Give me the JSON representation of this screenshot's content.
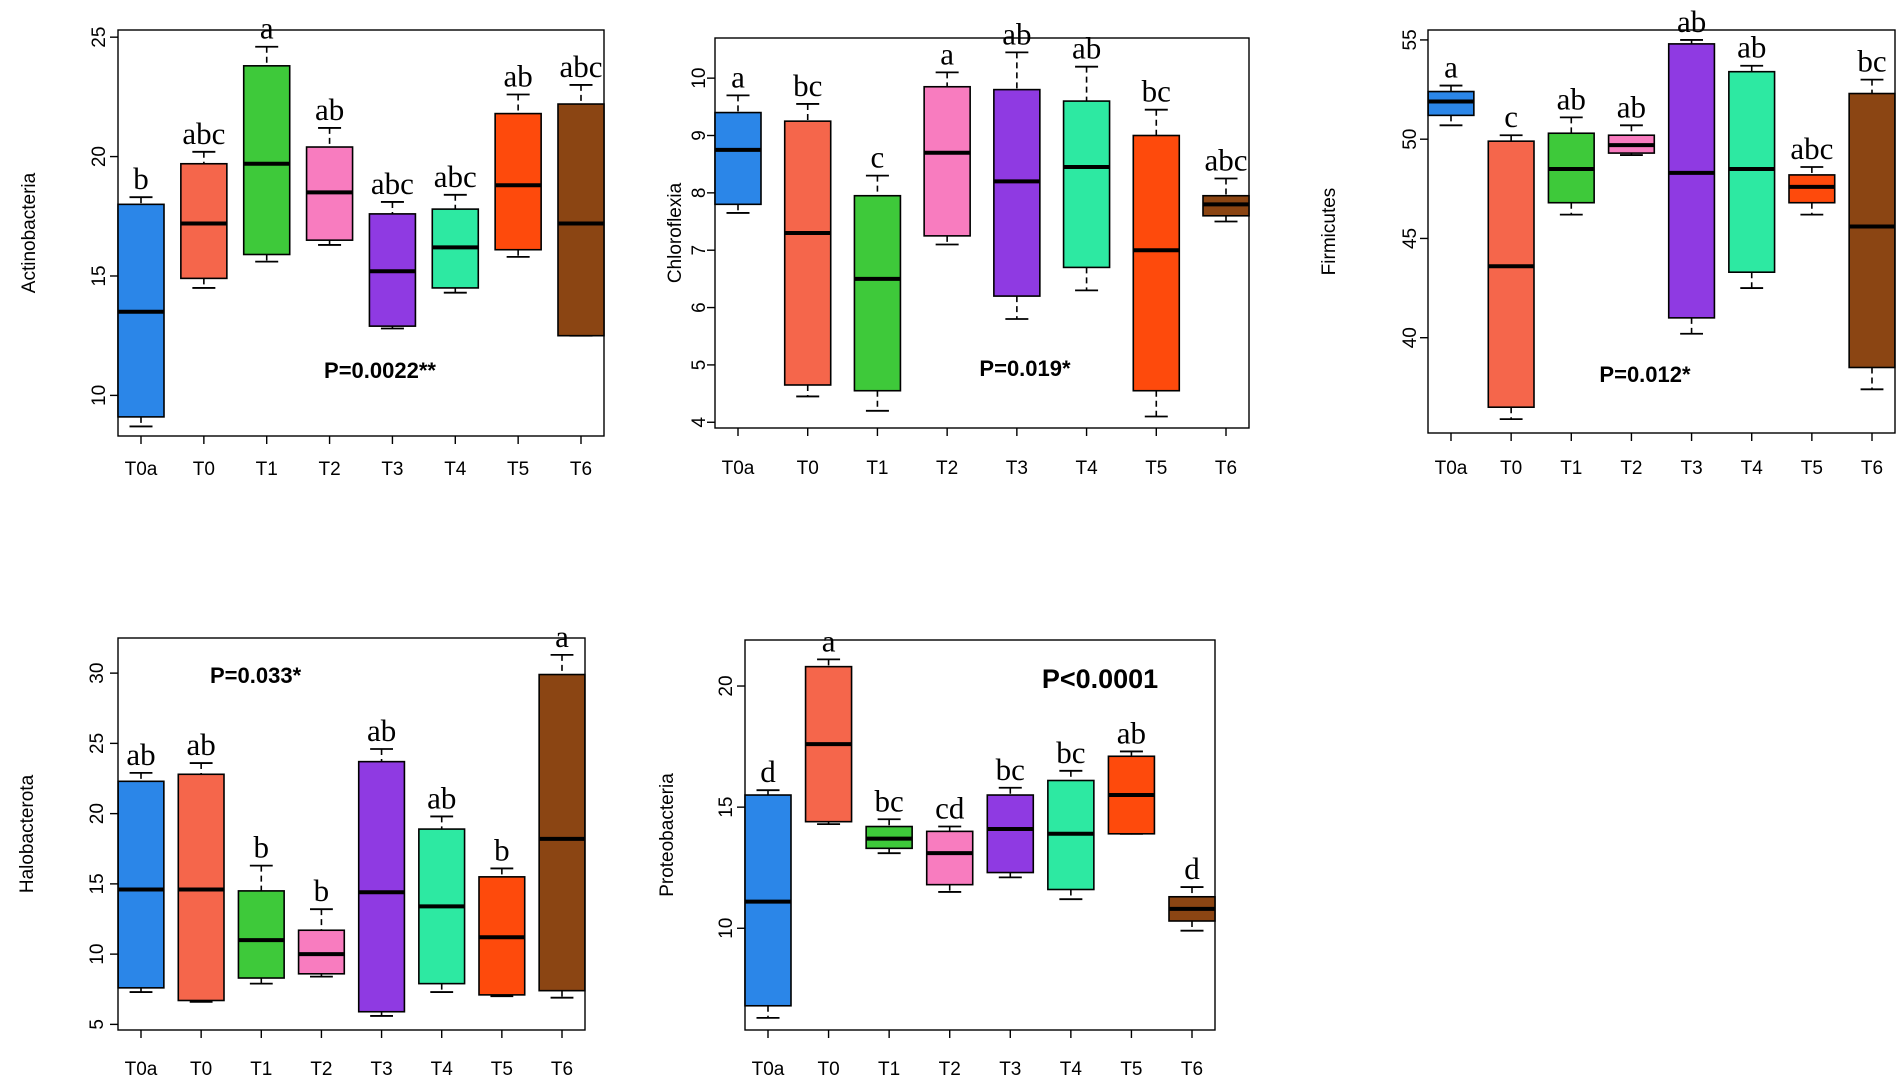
{
  "groups": [
    "T0a",
    "T0",
    "T1",
    "T2",
    "T3",
    "T4",
    "T5",
    "T6"
  ],
  "colors": [
    "#2b86e8",
    "#f5664b",
    "#3ec93a",
    "#f87cbf",
    "#8f3ae2",
    "#2de9a2",
    "#fe4a0c",
    "#8b4513"
  ],
  "chart_data": [
    {
      "type": "box",
      "ylabel": "Actinobacteria",
      "ylim": [
        8.3,
        25.3
      ],
      "yticks": [
        10,
        15,
        20,
        25
      ],
      "p_value": "P=0.0022**",
      "p_position": "bottom-center",
      "boxes": [
        {
          "group": "T0a",
          "min": 8.7,
          "q1": 9.1,
          "median": 13.5,
          "q3": 18.0,
          "max": 18.3,
          "letter": "b"
        },
        {
          "group": "T0",
          "min": 14.5,
          "q1": 14.9,
          "median": 17.2,
          "q3": 19.7,
          "max": 20.2,
          "letter": "abc"
        },
        {
          "group": "T1",
          "min": 15.6,
          "q1": 15.9,
          "median": 19.7,
          "q3": 23.8,
          "max": 24.6,
          "letter": "a"
        },
        {
          "group": "T2",
          "min": 16.3,
          "q1": 16.5,
          "median": 18.5,
          "q3": 20.4,
          "max": 21.2,
          "letter": "ab"
        },
        {
          "group": "T3",
          "min": 12.8,
          "q1": 12.9,
          "median": 15.2,
          "q3": 17.6,
          "max": 18.1,
          "letter": "abc"
        },
        {
          "group": "T4",
          "min": 14.3,
          "q1": 14.5,
          "median": 16.2,
          "q3": 17.8,
          "max": 18.4,
          "letter": "abc"
        },
        {
          "group": "T5",
          "min": 15.8,
          "q1": 16.1,
          "median": 18.8,
          "q3": 21.8,
          "max": 22.6,
          "letter": "ab"
        },
        {
          "group": "T6",
          "min": 12.5,
          "q1": 12.5,
          "median": 17.2,
          "q3": 22.2,
          "max": 23.0,
          "letter": "abc"
        }
      ]
    },
    {
      "type": "box",
      "ylabel": "Chloroflexia",
      "ylim": [
        3.9,
        10.7
      ],
      "yticks": [
        4,
        5,
        6,
        7,
        8,
        9,
        10
      ],
      "p_value": "P=0.019*",
      "p_position": "bottom-center",
      "boxes": [
        {
          "group": "T0a",
          "min": 7.65,
          "q1": 7.8,
          "median": 8.75,
          "q3": 9.4,
          "max": 9.7,
          "letter": "a"
        },
        {
          "group": "T0",
          "min": 4.45,
          "q1": 4.65,
          "median": 7.3,
          "q3": 9.25,
          "max": 9.55,
          "letter": "bc"
        },
        {
          "group": "T1",
          "min": 4.2,
          "q1": 4.55,
          "median": 6.5,
          "q3": 7.95,
          "max": 8.3,
          "letter": "c"
        },
        {
          "group": "T2",
          "min": 7.1,
          "q1": 7.25,
          "median": 8.7,
          "q3": 9.85,
          "max": 10.1,
          "letter": "a"
        },
        {
          "group": "T3",
          "min": 5.8,
          "q1": 6.2,
          "median": 8.2,
          "q3": 9.8,
          "max": 10.45,
          "letter": "ab"
        },
        {
          "group": "T4",
          "min": 6.3,
          "q1": 6.7,
          "median": 8.45,
          "q3": 9.6,
          "max": 10.2,
          "letter": "ab"
        },
        {
          "group": "T5",
          "min": 4.1,
          "q1": 4.55,
          "median": 7.0,
          "q3": 9.0,
          "max": 9.45,
          "letter": "bc"
        },
        {
          "group": "T6",
          "min": 7.5,
          "q1": 7.6,
          "median": 7.8,
          "q3": 7.95,
          "max": 8.25,
          "letter": "abc"
        }
      ]
    },
    {
      "type": "box",
      "ylabel": "Firmicutes",
      "ylim": [
        35.2,
        55.5
      ],
      "yticks": [
        40,
        45,
        50,
        55
      ],
      "p_value": "P=0.012*",
      "p_position": "bottom-center",
      "boxes": [
        {
          "group": "T0a",
          "min": 50.7,
          "q1": 51.2,
          "median": 51.9,
          "q3": 52.4,
          "max": 52.7,
          "letter": "a"
        },
        {
          "group": "T0",
          "min": 35.9,
          "q1": 36.5,
          "median": 43.6,
          "q3": 49.9,
          "max": 50.2,
          "letter": "c"
        },
        {
          "group": "T1",
          "min": 46.2,
          "q1": 46.8,
          "median": 48.5,
          "q3": 50.3,
          "max": 51.1,
          "letter": "ab"
        },
        {
          "group": "T2",
          "min": 49.2,
          "q1": 49.3,
          "median": 49.7,
          "q3": 50.2,
          "max": 50.7,
          "letter": "ab"
        },
        {
          "group": "T3",
          "min": 40.2,
          "q1": 41.0,
          "median": 48.3,
          "q3": 54.8,
          "max": 55.0,
          "letter": "ab"
        },
        {
          "group": "T4",
          "min": 42.5,
          "q1": 43.3,
          "median": 48.5,
          "q3": 53.4,
          "max": 53.7,
          "letter": "ab"
        },
        {
          "group": "T5",
          "min": 46.2,
          "q1": 46.8,
          "median": 47.6,
          "q3": 48.2,
          "max": 48.6,
          "letter": "abc"
        },
        {
          "group": "T6",
          "min": 37.4,
          "q1": 38.5,
          "median": 45.6,
          "q3": 52.3,
          "max": 53.0,
          "letter": "bc"
        }
      ]
    },
    {
      "type": "box",
      "ylabel": "Halobacterota",
      "ylim": [
        4.6,
        32.5
      ],
      "yticks": [
        5,
        10,
        15,
        20,
        25,
        30
      ],
      "p_value": "P=0.033*",
      "p_position": "top-left",
      "boxes": [
        {
          "group": "T0a",
          "min": 7.3,
          "q1": 7.6,
          "median": 14.6,
          "q3": 22.3,
          "max": 22.9,
          "letter": "ab"
        },
        {
          "group": "T0",
          "min": 6.6,
          "q1": 6.7,
          "median": 14.6,
          "q3": 22.8,
          "max": 23.6,
          "letter": "ab"
        },
        {
          "group": "T1",
          "min": 7.9,
          "q1": 8.3,
          "median": 11.0,
          "q3": 14.5,
          "max": 16.3,
          "letter": "b"
        },
        {
          "group": "T2",
          "min": 8.4,
          "q1": 8.6,
          "median": 10.0,
          "q3": 11.7,
          "max": 13.2,
          "letter": "b"
        },
        {
          "group": "T3",
          "min": 5.6,
          "q1": 5.9,
          "median": 14.4,
          "q3": 23.7,
          "max": 24.6,
          "letter": "ab"
        },
        {
          "group": "T4",
          "min": 7.3,
          "q1": 7.9,
          "median": 13.4,
          "q3": 18.9,
          "max": 19.8,
          "letter": "ab"
        },
        {
          "group": "T5",
          "min": 7.0,
          "q1": 7.1,
          "median": 11.2,
          "q3": 15.5,
          "max": 16.1,
          "letter": "b"
        },
        {
          "group": "T6",
          "min": 6.9,
          "q1": 7.4,
          "median": 18.2,
          "q3": 29.9,
          "max": 31.3,
          "letter": "a"
        }
      ]
    },
    {
      "type": "box",
      "ylabel": "Proteobacteria",
      "ylim": [
        5.8,
        21.9
      ],
      "yticks": [
        10,
        15,
        20
      ],
      "p_value": "P<0.0001",
      "p_position": "top-right",
      "boxes": [
        {
          "group": "T0a",
          "min": 6.3,
          "q1": 6.8,
          "median": 11.1,
          "q3": 15.5,
          "max": 15.7,
          "letter": "d"
        },
        {
          "group": "T0",
          "min": 14.3,
          "q1": 14.4,
          "median": 17.6,
          "q3": 20.8,
          "max": 21.1,
          "letter": "a"
        },
        {
          "group": "T1",
          "min": 13.1,
          "q1": 13.3,
          "median": 13.7,
          "q3": 14.2,
          "max": 14.5,
          "letter": "bc"
        },
        {
          "group": "T2",
          "min": 11.5,
          "q1": 11.8,
          "median": 13.1,
          "q3": 14.0,
          "max": 14.2,
          "letter": "cd"
        },
        {
          "group": "T3",
          "min": 12.1,
          "q1": 12.3,
          "median": 14.1,
          "q3": 15.5,
          "max": 15.8,
          "letter": "bc"
        },
        {
          "group": "T4",
          "min": 11.2,
          "q1": 11.6,
          "median": 13.9,
          "q3": 16.1,
          "max": 16.5,
          "letter": "bc"
        },
        {
          "group": "T5",
          "min": 13.9,
          "q1": 13.9,
          "median": 15.5,
          "q3": 17.1,
          "max": 17.3,
          "letter": "ab"
        },
        {
          "group": "T6",
          "min": 9.9,
          "q1": 10.3,
          "median": 10.8,
          "q3": 11.3,
          "max": 11.7,
          "letter": "d"
        }
      ]
    }
  ]
}
